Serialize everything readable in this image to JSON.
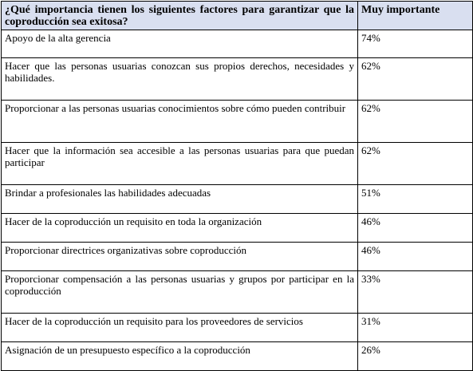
{
  "header": {
    "question": "¿Qué importancia tienen los siguientes factores para garantizar que la coproducción sea exitosa?",
    "column_label": "Muy importante"
  },
  "rows": [
    {
      "factor": "Apoyo de la alta gerencia",
      "value": "74%"
    },
    {
      "factor": "Hacer que las personas usuarias conozcan sus propios derechos, necesidades y habilidades.",
      "value": "62%"
    },
    {
      "factor": "Proporcionar a las personas usuarias conocimientos sobre cómo pueden contribuir",
      "value": "62%"
    },
    {
      "factor": "Hacer que la información sea accesible a las personas usuarias para que puedan participar",
      "value": "62%"
    },
    {
      "factor": "Brindar a profesionales las habilidades adecuadas",
      "value": "51%"
    },
    {
      "factor": "Hacer de la coproducción un requisito en toda la organización",
      "value": "46%"
    },
    {
      "factor": "Proporcionar directrices organizativas sobre coproducción",
      "value": "46%"
    },
    {
      "factor": "Proporcionar compensación a las personas usuarias y grupos por participar en la coproducción",
      "value": "33%"
    },
    {
      "factor": "Hacer de la coproducción un requisito para los proveedores de servicios",
      "value": "31%"
    },
    {
      "factor": "Asignación de un presupuesto específico a la coproducción",
      "value": "26%"
    }
  ]
}
